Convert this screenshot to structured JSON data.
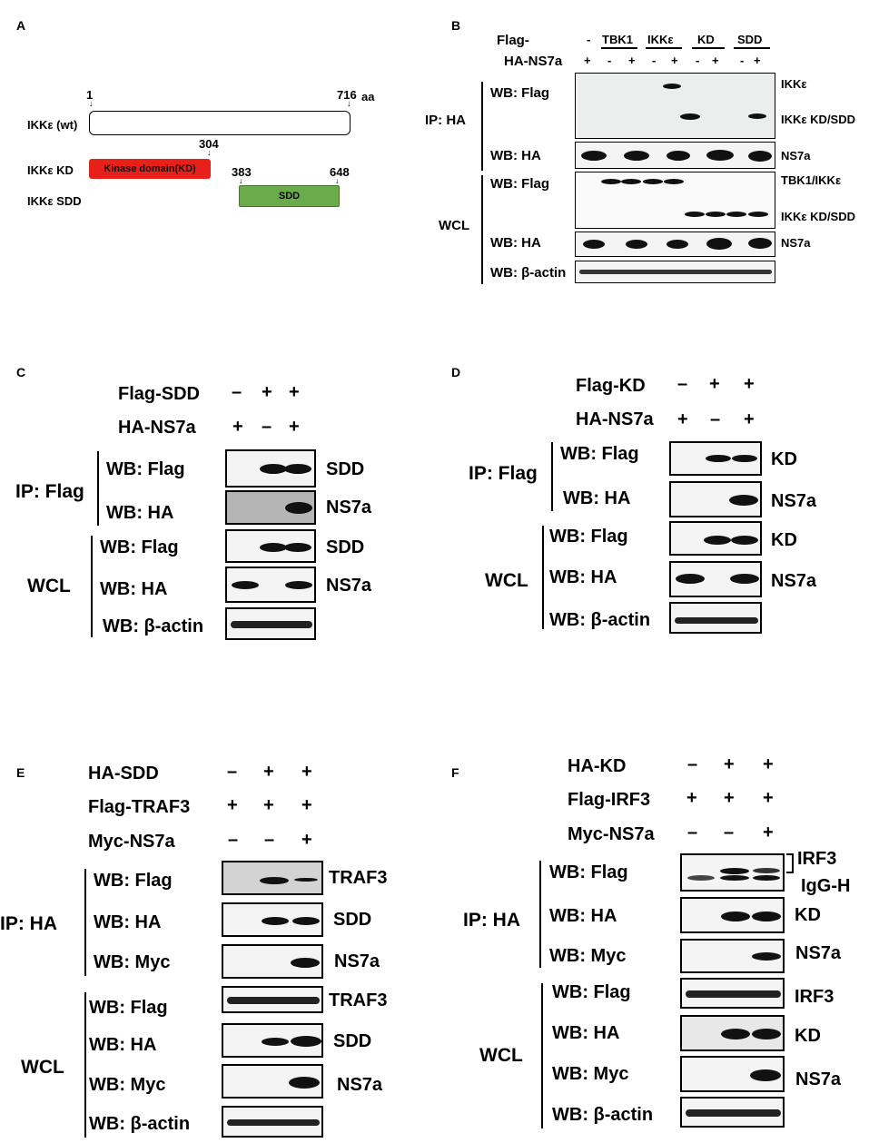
{
  "panel_letters": [
    "A",
    "B",
    "C",
    "D",
    "E",
    "F"
  ],
  "panelA": {
    "start": "1",
    "end": "716",
    "aa": "aa",
    "kd_end": "304",
    "sdd_start": "383",
    "sdd_end": "648",
    "wt_label": "IKKε (wt)",
    "kd_label": "IKKε KD",
    "sdd_label": "IKKε SDD",
    "kd_box": "Kinase domain(KD)",
    "sdd_box": "SDD",
    "colors": {
      "kd": "#e8201a",
      "sdd": "#6aab4a"
    }
  },
  "panelB": {
    "flag": "Flag-",
    "ha": "HA-NS7a",
    "groups": [
      "TBK1",
      "IKKε",
      "KD",
      "SDD"
    ],
    "dash": "-",
    "signs": [
      "+",
      "-",
      "+",
      "-",
      "+",
      "-",
      "+",
      "-",
      "+"
    ],
    "ip": "IP: HA",
    "wcl": "WCL",
    "wb_flag": "WB: Flag",
    "wb_ha": "WB: HA",
    "wb_actin": "WB: β-actin",
    "right": [
      "IKKε",
      "IKKε KD/SDD",
      "NS7a",
      "TBK1/IKKε",
      "IKKε KD/SDD",
      "NS7a"
    ]
  },
  "panelC": {
    "row1": "Flag-SDD",
    "row1_signs": [
      "–",
      "+",
      "+"
    ],
    "row2": "HA-NS7a",
    "row2_signs": [
      "+",
      "–",
      "+"
    ],
    "ip": "IP: Flag",
    "wcl": "WCL",
    "wb": [
      "WB: Flag",
      "WB: HA",
      "WB: Flag",
      "WB: HA",
      "WB: β-actin"
    ],
    "right": [
      "SDD",
      "NS7a",
      "SDD",
      "NS7a"
    ]
  },
  "panelD": {
    "row1": "Flag-KD",
    "row1_signs": [
      "–",
      "+",
      "+"
    ],
    "row2": "HA-NS7a",
    "row2_signs": [
      "+",
      "–",
      "+"
    ],
    "ip": "IP: Flag",
    "wcl": "WCL",
    "wb": [
      "WB: Flag",
      "WB: HA",
      "WB: Flag",
      "WB: HA",
      "WB: β-actin"
    ],
    "right": [
      "KD",
      "NS7a",
      "KD",
      "NS7a"
    ]
  },
  "panelE": {
    "row1": "HA-SDD",
    "row1_signs": [
      "–",
      "+",
      "+"
    ],
    "row2": "Flag-TRAF3",
    "row2_signs": [
      "+",
      "+",
      "+"
    ],
    "row3": "Myc-NS7a",
    "row3_signs": [
      "–",
      "–",
      "+"
    ],
    "ip": "IP: HA",
    "wcl": "WCL",
    "wb": [
      "WB: Flag",
      "WB: HA",
      "WB: Myc",
      "WB: Flag",
      "WB: HA",
      "WB: Myc",
      "WB: β-actin"
    ],
    "right": [
      "TRAF3",
      "SDD",
      "NS7a",
      "TRAF3",
      "SDD",
      "NS7a"
    ]
  },
  "panelF": {
    "row1": "HA-KD",
    "row1_signs": [
      "–",
      "+",
      "+"
    ],
    "row2": "Flag-IRF3",
    "row2_signs": [
      "+",
      "+",
      "+"
    ],
    "row3": "Myc-NS7a",
    "row3_signs": [
      "–",
      "–",
      "+"
    ],
    "ip": "IP: HA",
    "wcl": "WCL",
    "wb": [
      "WB: Flag",
      "WB: HA",
      "WB: Myc",
      "WB: Flag",
      "WB: HA",
      "WB: Myc",
      "WB: β-actin"
    ],
    "right": [
      "IRF3",
      "IgG-H",
      "KD",
      "NS7a",
      "IRF3",
      "KD",
      "NS7a"
    ]
  }
}
